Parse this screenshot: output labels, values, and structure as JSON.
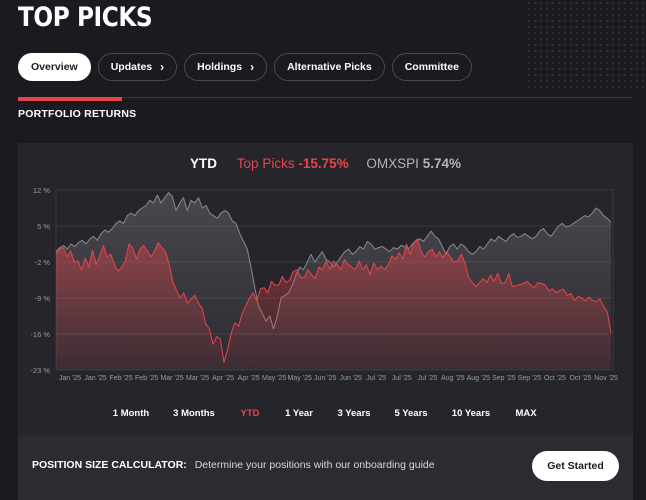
{
  "page": {
    "title": "TOP PICKS"
  },
  "nav": {
    "tabs": [
      {
        "label": "Overview",
        "active": true,
        "chevron": false
      },
      {
        "label": "Updates",
        "active": false,
        "chevron": true
      },
      {
        "label": "Holdings",
        "active": false,
        "chevron": true
      },
      {
        "label": "Alternative Picks",
        "active": false,
        "chevron": false
      },
      {
        "label": "Committee",
        "active": false,
        "chevron": false
      }
    ],
    "chevron_glyph": "›"
  },
  "section": {
    "title": "PORTFOLIO RETURNS"
  },
  "legend": {
    "period": "YTD",
    "series1_name": "Top Picks",
    "series1_value": "-15.75%",
    "series2_name": "OMXSPI",
    "series2_value": "5.74%"
  },
  "colors": {
    "accent": "#e8454a",
    "background": "#1b1a20",
    "panel": "#26252c",
    "index_line": "#8a8990"
  },
  "chart_data": {
    "type": "area",
    "y_tick_labels": [
      "12 %",
      "5 %",
      "-2 %",
      "-9 %",
      "-16 %",
      "-23 %"
    ],
    "y_ticks": [
      12,
      5,
      -2,
      -9,
      -16,
      -23
    ],
    "ylim": [
      -23,
      12
    ],
    "x_tick_labels": [
      "Jan '25",
      "Jan '25",
      "Feb '25",
      "Feb '25",
      "Mar '25",
      "Mar '25",
      "Apr '25",
      "Apr '25",
      "May '25",
      "May '25",
      "Jun '25",
      "Jun '25",
      "Jul '25",
      "Jul '25",
      "Jul '25",
      "Aug '25",
      "Aug '25",
      "Sep '25",
      "Sep '25",
      "Oct '25",
      "Oct '25",
      "Nov '25"
    ],
    "grid": true,
    "series": [
      {
        "name": "Top Picks",
        "color": "#e8454a",
        "values": [
          -0.5,
          0.5,
          0.8,
          -1,
          0.2,
          -2,
          -1.8,
          -3.5,
          -1.2,
          -3,
          0.3,
          -2.5,
          -0.8,
          1.2,
          -1,
          -0.5,
          -2.5,
          -3.8,
          -3,
          -1.8,
          1.5,
          0.8,
          -1.5,
          0.5,
          1.2,
          0.2,
          -1,
          0.2,
          1.8,
          0.8,
          0,
          -2.5,
          -5.8,
          -7.5,
          -9,
          -8,
          -10,
          -9.2,
          -8.5,
          -10,
          -11,
          -14,
          -15,
          -18,
          -16.5,
          -17,
          -21.5,
          -19,
          -15.8,
          -13.8,
          -14.5,
          -12,
          -10.5,
          -9,
          -8,
          -9.5,
          -7.2,
          -7,
          -8,
          -5.8,
          -6.5,
          -6.5,
          -4.8,
          -6,
          -5.5,
          -3.8,
          -3.5,
          -5,
          -5,
          -3.5,
          -4.5,
          -5.2,
          -3,
          -3.5,
          -1.8,
          -3.5,
          -1.8,
          -2.5,
          -3.5,
          -1.5,
          -2.5,
          -3,
          -3.5,
          -1.8,
          -3.5,
          -2.5,
          -4.5,
          -2.2,
          -3.5,
          -2.8,
          -3.5,
          -2.5,
          -0.8,
          -1.5,
          -0.2,
          -1.5,
          1.5,
          -0.5,
          1.8,
          2.5,
          0,
          -1,
          0,
          0.5,
          -1,
          0,
          -1.2,
          0,
          -1,
          -2,
          -1.8,
          -0.5,
          -2.2,
          -5,
          -6,
          -6.8,
          -6,
          -5.2,
          -6,
          -4.5,
          -5.8,
          -4.2,
          -6.2,
          -6,
          -4.2,
          -6.8,
          -6.6,
          -6.4,
          -6.2,
          -5.8,
          -6.5,
          -7,
          -6,
          -6.2,
          -6.5,
          -7.6,
          -7.2,
          -8,
          -7.5,
          -7.3,
          -8.5,
          -8.1,
          -9.5,
          -8.7,
          -9,
          -9.6,
          -8.8,
          -9.5,
          -9.7,
          -9.2,
          -10.7,
          -11.8,
          -15.75
        ]
      },
      {
        "name": "OMXSPI",
        "color": "#8a8990",
        "values": [
          0,
          0.8,
          1.2,
          0.5,
          1.5,
          1,
          1.8,
          2.2,
          1.5,
          2.5,
          3,
          2.2,
          3.5,
          4.2,
          3.8,
          4.5,
          5.5,
          6,
          5.5,
          7,
          7.5,
          7,
          8,
          8.5,
          9,
          10,
          9.5,
          11,
          9.5,
          10.5,
          11.5,
          10.8,
          8,
          9.5,
          10.5,
          8,
          10,
          9.5,
          10.5,
          8.5,
          9,
          7.5,
          7,
          6.5,
          7.5,
          8,
          7.5,
          6,
          5.5,
          3.5,
          2,
          0.5,
          -3,
          -7,
          -10.5,
          -12,
          -13.5,
          -12.5,
          -15,
          -12.5,
          -9,
          -8.5,
          -8,
          -6.5,
          -4.5,
          -3,
          -3.5,
          -2,
          -0.5,
          -2,
          -1,
          0,
          -1.5,
          -2,
          -3,
          -2,
          -1,
          0,
          0.5,
          -0.5,
          0,
          1,
          0.5,
          2,
          1.5,
          0.5,
          0.8,
          1,
          0.5,
          0,
          0.8,
          0.5,
          1.2,
          1,
          0.5,
          1.5,
          2,
          2.5,
          2,
          3,
          4,
          3,
          2.5,
          1,
          -0.5,
          1,
          1.5,
          0.5,
          1.5,
          1,
          0,
          -0.5,
          0,
          1,
          0.5,
          1.5,
          2.5,
          2,
          3,
          2.5,
          2,
          3,
          3.5,
          2.8,
          3,
          3.5,
          3,
          2.5,
          3,
          4,
          4.5,
          3.5,
          3,
          4,
          5,
          5.5,
          4.8,
          5,
          5.5,
          6,
          6.5,
          7,
          6.8,
          7.5,
          8.5,
          8,
          7,
          6.5,
          5.74
        ]
      }
    ]
  },
  "ranges": {
    "items": [
      {
        "label": "1 Month",
        "active": false
      },
      {
        "label": "3 Months",
        "active": false
      },
      {
        "label": "YTD",
        "active": true
      },
      {
        "label": "1 Year",
        "active": false
      },
      {
        "label": "3 Years",
        "active": false
      },
      {
        "label": "5 Years",
        "active": false
      },
      {
        "label": "10 Years",
        "active": false
      },
      {
        "label": "MAX",
        "active": false
      }
    ]
  },
  "calculator": {
    "label": "POSITION SIZE CALCULATOR:",
    "text": "Determine your positions with our onboarding guide",
    "button": "Get Started"
  }
}
